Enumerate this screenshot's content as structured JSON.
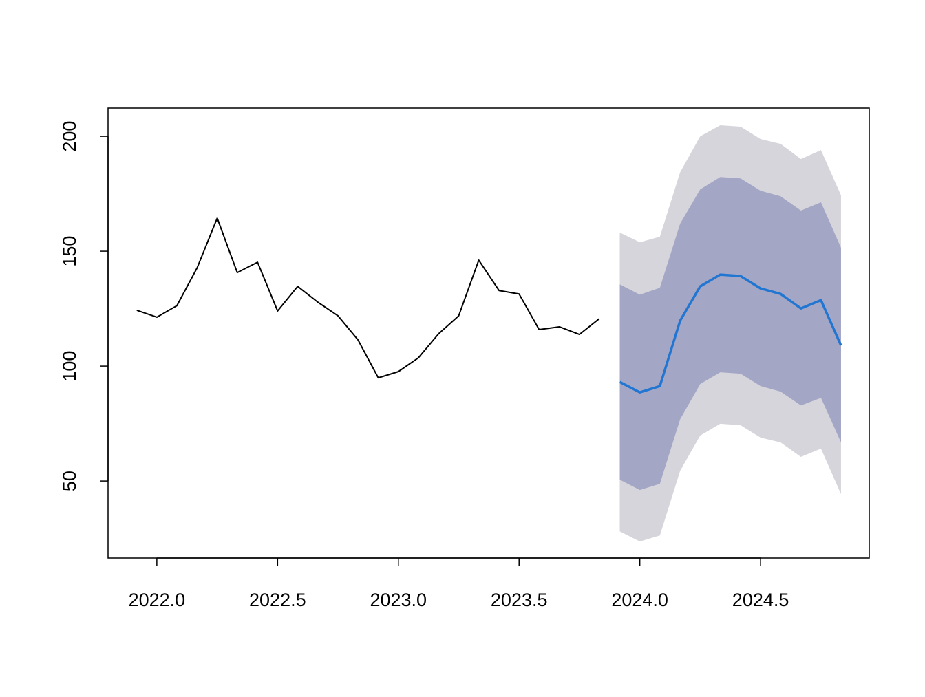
{
  "chart_data": {
    "type": "line",
    "xlim": [
      2021.798,
      2024.95
    ],
    "ylim": [
      16.5,
      212.3
    ],
    "xticks": [
      {
        "value": 2022.0,
        "label": "2022.0"
      },
      {
        "value": 2022.5,
        "label": "2022.5"
      },
      {
        "value": 2023.0,
        "label": "2023.0"
      },
      {
        "value": 2023.5,
        "label": "2023.5"
      },
      {
        "value": 2024.0,
        "label": "2024.0"
      },
      {
        "value": 2024.5,
        "label": "2024.5"
      }
    ],
    "yticks": [
      50,
      100,
      150,
      200
    ],
    "bands": [
      {
        "color": "#d5d5db",
        "x": [
          2023.917,
          2024.0,
          2024.083,
          2024.167,
          2024.25,
          2024.333,
          2024.417,
          2024.5,
          2024.583,
          2024.667,
          2024.75,
          2024.833
        ],
        "lower": [
          28.1,
          23.7,
          26.3,
          54.5,
          69.8,
          74.9,
          74.3,
          68.9,
          66.8,
          60.5,
          64.1,
          44.3
        ],
        "upper": [
          158.1,
          153.9,
          156.3,
          184.4,
          200.0,
          204.8,
          204.2,
          198.8,
          196.7,
          190.1,
          194.0,
          174.3
        ]
      },
      {
        "color": "#a4a6c6",
        "x": [
          2023.917,
          2024.0,
          2024.083,
          2024.167,
          2024.25,
          2024.333,
          2024.417,
          2024.5,
          2024.583,
          2024.667,
          2024.75,
          2024.833
        ],
        "lower": [
          50.6,
          46.1,
          48.8,
          76.9,
          92.2,
          97.3,
          96.7,
          91.3,
          88.9,
          82.9,
          86.2,
          66.8
        ],
        "upper": [
          135.6,
          131.1,
          134.1,
          162.0,
          176.9,
          182.3,
          181.7,
          176.3,
          173.9,
          167.7,
          171.3,
          151.5
        ]
      }
    ],
    "series": [
      {
        "color": "#000000",
        "x": [
          2021.917,
          2022.0,
          2022.083,
          2022.167,
          2022.25,
          2022.333,
          2022.417,
          2022.5,
          2022.583,
          2022.667,
          2022.75,
          2022.833,
          2022.917,
          2023.0,
          2023.083,
          2023.167,
          2023.25,
          2023.333,
          2023.417,
          2023.5,
          2023.583,
          2023.667,
          2023.75,
          2023.833
        ],
        "values": [
          124.3,
          121.3,
          126.3,
          142.8,
          164.4,
          140.7,
          145.2,
          124.0,
          134.7,
          127.8,
          121.9,
          111.4,
          94.9,
          97.6,
          103.6,
          114.1,
          121.9,
          146.1,
          132.9,
          131.4,
          115.9,
          117.1,
          113.8,
          120.7
        ]
      },
      {
        "color": "#2176d2",
        "x": [
          2023.917,
          2024.0,
          2024.083,
          2024.167,
          2024.25,
          2024.333,
          2024.417,
          2024.5,
          2024.583,
          2024.667,
          2024.75,
          2024.833
        ],
        "values": [
          93.1,
          88.6,
          91.3,
          119.8,
          134.7,
          139.8,
          139.2,
          133.8,
          131.4,
          125.1,
          128.7,
          109.0
        ]
      }
    ]
  }
}
